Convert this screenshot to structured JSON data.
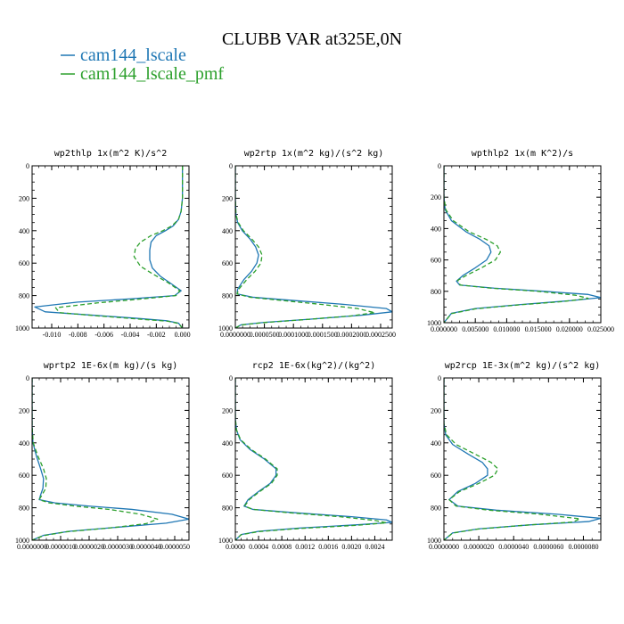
{
  "chart_data": {
    "title": "CLUBB VAR at325E,0N",
    "type": "line",
    "legend": {
      "placement": "top-left",
      "entries": [
        {
          "name": "cam144_lscale",
          "color": "#1f77b4",
          "dash": "solid"
        },
        {
          "name": "cam144_lscale_pmf",
          "color": "#2ca02c",
          "dash": "dashed"
        }
      ]
    },
    "panels": [
      {
        "title": "wp2thlp  1x(m^2 K)/s^2",
        "xlim": [
          -0.0115,
          0.0005
        ],
        "xticks": [
          "-0.010",
          "-0.008",
          "-0.006",
          "-0.004",
          "-0.002",
          "0.000"
        ],
        "xtick_values": [
          -0.01,
          -0.008,
          -0.006,
          -0.004,
          -0.002,
          0.0
        ],
        "ylim": [
          1000,
          0
        ],
        "yticks": [
          "0",
          "200",
          "400",
          "600",
          "800",
          "1000"
        ],
        "series": [
          {
            "name": "cam144_lscale",
            "x": [
              0.0,
              0.0,
              0.0,
              -0.0001,
              -0.0003,
              -0.0007,
              -0.0013,
              -0.002,
              -0.0024,
              -0.0025,
              -0.0025,
              -0.0023,
              -0.0017,
              -0.0008,
              -0.0001,
              -0.0006,
              -0.004,
              -0.008,
              -0.0113,
              -0.0105,
              -0.007,
              -0.0035,
              -0.0012,
              -0.0003,
              0.0
            ],
            "y": [
              0,
              100,
              200,
              280,
              330,
              370,
              400,
              430,
              470,
              520,
              580,
              630,
              680,
              730,
              770,
              800,
              820,
              840,
              870,
              900,
              920,
              940,
              955,
              970,
              1000
            ]
          },
          {
            "name": "cam144_lscale_pmf",
            "x": [
              0.0,
              0.0,
              0.0,
              -0.0001,
              -0.0003,
              -0.0008,
              -0.0015,
              -0.0024,
              -0.0032,
              -0.0036,
              -0.0037,
              -0.0032,
              -0.0022,
              -0.0011,
              -0.0002,
              -0.0005,
              -0.003,
              -0.0065,
              -0.0097,
              -0.0094,
              -0.0065,
              -0.0033,
              -0.0011,
              -0.0003,
              0.0
            ],
            "y": [
              0,
              100,
              200,
              280,
              330,
              370,
              400,
              430,
              470,
              510,
              560,
              620,
              670,
              720,
              770,
              800,
              820,
              845,
              875,
              905,
              925,
              945,
              958,
              972,
              1000
            ]
          }
        ]
      },
      {
        "title": "wp2rtp  1x(m^2 kg)/(s^2 kg)",
        "xlim": [
          0.0,
          0.00027
        ],
        "xticks": [
          "0.0000000",
          "0.0000500",
          "0.0001000",
          "0.0001500",
          "0.0002000",
          "0.0002500"
        ],
        "xtick_values": [
          0.0,
          5e-05,
          0.0001,
          0.00015,
          0.0002,
          0.00025
        ],
        "ylim": [
          1000,
          0
        ],
        "yticks": [
          "0",
          "200",
          "400",
          "600",
          "800",
          "1000"
        ],
        "series": [
          {
            "name": "cam144_lscale",
            "x": [
              0.0,
              0.0,
              1e-06,
              4e-06,
              1.2e-05,
              2.5e-05,
              3.5e-05,
              4e-05,
              3.7e-05,
              2.8e-05,
              1.5e-05,
              4e-06,
              3e-06,
              3e-05,
              0.0001,
              0.00019,
              0.00026,
              0.00027,
              0.00022,
              0.00013,
              5e-05,
              1e-05,
              0.0
            ],
            "y": [
              0,
              200,
              300,
              350,
              400,
              450,
              500,
              550,
              600,
              650,
              700,
              760,
              790,
              810,
              830,
              855,
              880,
              900,
              920,
              945,
              965,
              980,
              1000
            ]
          },
          {
            "name": "cam144_lscale_pmf",
            "x": [
              0.0,
              0.0,
              1e-06,
              5e-06,
              1.4e-05,
              2.8e-05,
              4e-05,
              4.6e-05,
              4.4e-05,
              3.4e-05,
              2e-05,
              6e-06,
              3e-06,
              2.5e-05,
              8e-05,
              0.00015,
              0.00021,
              0.00024,
              0.0002,
              0.00012,
              5e-05,
              1e-05,
              0.0
            ],
            "y": [
              0,
              200,
              300,
              350,
              400,
              450,
              500,
              550,
              600,
              650,
              700,
              760,
              790,
              810,
              830,
              855,
              880,
              905,
              925,
              948,
              966,
              981,
              1000
            ]
          }
        ]
      },
      {
        "title": "wpthlp2  1x(m K^2)/s",
        "xlim": [
          0.0,
          0.025
        ],
        "xticks": [
          "0.000000",
          "0.005000",
          "0.010000",
          "0.015000",
          "0.020000",
          "0.025000"
        ],
        "xtick_values": [
          0.0,
          0.005,
          0.01,
          0.015,
          0.02,
          0.025
        ],
        "ylim": [
          1000,
          0
        ],
        "yticks": [
          "0",
          "200",
          "400",
          "600",
          "800",
          "1000"
        ],
        "series": [
          {
            "name": "cam144_lscale",
            "x": [
              0.0,
              0.0,
              0.0002,
              0.0012,
              0.0035,
              0.0058,
              0.0072,
              0.0075,
              0.0068,
              0.005,
              0.003,
              0.002,
              0.0025,
              0.008,
              0.016,
              0.023,
              0.025,
              0.02,
              0.012,
              0.005,
              0.0012,
              0.0
            ],
            "y": [
              0,
              200,
              280,
              350,
              420,
              470,
              510,
              550,
              600,
              650,
              700,
              735,
              760,
              780,
              800,
              820,
              840,
              860,
              885,
              910,
              940,
              1000
            ]
          },
          {
            "name": "cam144_lscale_pmf",
            "x": [
              0.0,
              0.0,
              0.0003,
              0.0015,
              0.004,
              0.0068,
              0.0085,
              0.009,
              0.0082,
              0.006,
              0.0035,
              0.0022,
              0.0026,
              0.0075,
              0.015,
              0.021,
              0.023,
              0.019,
              0.0115,
              0.005,
              0.0012,
              0.0
            ],
            "y": [
              0,
              200,
              280,
              350,
              420,
              470,
              510,
              550,
              600,
              650,
              700,
              730,
              760,
              780,
              800,
              825,
              845,
              865,
              888,
              912,
              942,
              1000
            ]
          }
        ]
      },
      {
        "title": "wprtp2  1E-6x(m kg)/(s kg)",
        "xlim": [
          0.0,
          5.5e-06
        ],
        "xticks": [
          "0.0000000",
          "0.0000010",
          "0.0000020",
          "0.0000030",
          "0.0000040",
          "0.0000050"
        ],
        "xtick_values": [
          0.0,
          1e-06,
          2e-06,
          3e-06,
          4e-06,
          5e-06
        ],
        "ylim": [
          1000,
          0
        ],
        "yticks": [
          "0",
          "200",
          "400",
          "600",
          "800",
          "1000"
        ],
        "series": [
          {
            "name": "cam144_lscale",
            "x": [
              0.0,
              0.0,
              3e-08,
              1.5e-07,
              3e-07,
              4e-07,
              3.8e-07,
              3e-07,
              2.5e-07,
              8e-07,
              2e-06,
              3.5e-06,
              4.9e-06,
              5.5e-06,
              4.7e-06,
              3e-06,
              1.3e-06,
              4e-07,
              0.0
            ],
            "y": [
              0,
              300,
              400,
              480,
              560,
              620,
              680,
              720,
              750,
              770,
              790,
              810,
              840,
              870,
              895,
              920,
              945,
              970,
              1000
            ]
          },
          {
            "name": "cam144_lscale_pmf",
            "x": [
              0.0,
              0.0,
              4e-08,
              2e-07,
              4e-07,
              5e-07,
              4.8e-07,
              3.5e-07,
              2.5e-07,
              6e-07,
              1.5e-06,
              2.7e-06,
              3.8e-06,
              4.4e-06,
              4e-06,
              2.7e-06,
              1.2e-06,
              4e-07,
              0.0
            ],
            "y": [
              0,
              300,
              400,
              480,
              560,
              620,
              680,
              720,
              750,
              770,
              790,
              810,
              840,
              870,
              898,
              925,
              948,
              972,
              1000
            ]
          }
        ]
      },
      {
        "title": "rcp2  1E-6x(kg^2)/(kg^2)",
        "xlim": [
          0.0,
          0.0027
        ],
        "xticks": [
          "0.0000",
          "0.0004",
          "0.0008",
          "0.0012",
          "0.0016",
          "0.0020",
          "0.0024"
        ],
        "xtick_values": [
          0.0,
          0.0004,
          0.0008,
          0.0012,
          0.0016,
          0.002,
          0.0024
        ],
        "ylim": [
          1000,
          0
        ],
        "yticks": [
          "0",
          "200",
          "400",
          "600",
          "800",
          "1000"
        ],
        "series": [
          {
            "name": "cam144_lscale",
            "x": [
              0.0,
              0.0,
              2e-05,
              8e-05,
              0.00025,
              0.0005,
              0.0007,
              0.0007,
              0.0006,
              0.0004,
              0.00022,
              0.00015,
              0.0003,
              0.001,
              0.002,
              0.0026,
              0.0027,
              0.0021,
              0.0011,
              0.0004,
              0.0001,
              0.0
            ],
            "y": [
              0,
              250,
              320,
              380,
              440,
              500,
              560,
              600,
              650,
              700,
              750,
              790,
              810,
              830,
              855,
              875,
              890,
              905,
              925,
              945,
              965,
              1000
            ]
          },
          {
            "name": "cam144_lscale_pmf",
            "x": [
              0.0,
              0.0,
              2e-05,
              9e-05,
              0.00027,
              0.00052,
              0.00072,
              0.00072,
              0.00062,
              0.00042,
              0.00024,
              0.00016,
              0.0003,
              0.0009,
              0.0018,
              0.0024,
              0.0026,
              0.0021,
              0.0011,
              0.0004,
              0.0001,
              0.0
            ],
            "y": [
              0,
              250,
              320,
              380,
              440,
              500,
              560,
              600,
              650,
              700,
              750,
              790,
              810,
              830,
              855,
              878,
              893,
              908,
              928,
              947,
              966,
              1000
            ]
          }
        ]
      },
      {
        "title": "wp2rcp  1E-3x(m^2 kg)/(s^2 kg)",
        "xlim": [
          0.0,
          9e-06
        ],
        "xticks": [
          "0.0000000",
          "0.0000020",
          "0.0000040",
          "0.0000060",
          "0.0000080"
        ],
        "xtick_values": [
          0.0,
          2e-06,
          4e-06,
          6e-06,
          8e-06
        ],
        "ylim": [
          1000,
          0
        ],
        "yticks": [
          "0",
          "200",
          "400",
          "600",
          "800",
          "1000"
        ],
        "series": [
          {
            "name": "cam144_lscale",
            "x": [
              0.0,
              0.0,
              1e-07,
              5e-07,
              1.4e-06,
              2.2e-06,
              2.5e-06,
              2.5e-06,
              1.8e-06,
              8e-07,
              3e-07,
              8e-07,
              3e-06,
              6.5e-06,
              9e-06,
              8.3e-06,
              5e-06,
              2e-06,
              5e-07,
              0.0
            ],
            "y": [
              0,
              280,
              350,
              410,
              470,
              520,
              560,
              600,
              650,
              700,
              750,
              790,
              815,
              840,
              865,
              885,
              905,
              930,
              955,
              1000
            ]
          },
          {
            "name": "cam144_lscale_pmf",
            "x": [
              0.0,
              0.0,
              1.5e-07,
              7e-07,
              1.8e-06,
              2.7e-06,
              3.1e-06,
              2.9e-06,
              2e-06,
              9e-07,
              3e-07,
              7e-07,
              2.6e-06,
              5.5e-06,
              7.8e-06,
              7.4e-06,
              4.6e-06,
              1.9e-06,
              5e-07,
              0.0
            ],
            "y": [
              0,
              280,
              350,
              410,
              470,
              520,
              560,
              600,
              650,
              700,
              750,
              790,
              815,
              840,
              868,
              888,
              908,
              932,
              956,
              1000
            ]
          }
        ]
      }
    ]
  }
}
